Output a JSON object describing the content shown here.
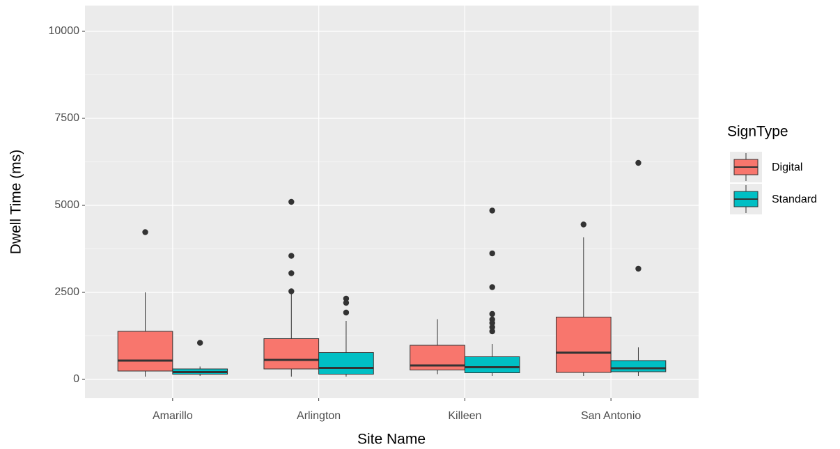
{
  "chart_data": {
    "type": "boxplot",
    "x_label": "Site Name",
    "y_label": "Dwell Time (ms)",
    "legend_title": "SignType",
    "legend_position": "right",
    "categories": [
      "Amarillo",
      "Arlington",
      "Killeen",
      "San Antonio"
    ],
    "series": [
      {
        "name": "Digital",
        "color": "#F8766D",
        "boxes": [
          {
            "min": 80,
            "q1": 240,
            "median": 540,
            "q3": 1380,
            "max": 2500,
            "outliers": [
              4230
            ]
          },
          {
            "min": 80,
            "q1": 300,
            "median": 560,
            "q3": 1170,
            "max": 2450,
            "outliers": [
              2530,
              3050,
              3550,
              5100
            ]
          },
          {
            "min": 150,
            "q1": 270,
            "median": 400,
            "q3": 980,
            "max": 1730,
            "outliers": []
          },
          {
            "min": 100,
            "q1": 200,
            "median": 770,
            "q3": 1790,
            "max": 4080,
            "outliers": [
              4450
            ]
          }
        ]
      },
      {
        "name": "Standard",
        "color": "#00BFC4",
        "boxes": [
          {
            "min": 100,
            "q1": 150,
            "median": 210,
            "q3": 300,
            "max": 370,
            "outliers": [
              1050
            ]
          },
          {
            "min": 80,
            "q1": 150,
            "median": 330,
            "q3": 770,
            "max": 1680,
            "outliers": [
              1920,
              2200,
              2320
            ]
          },
          {
            "min": 100,
            "q1": 190,
            "median": 350,
            "q3": 650,
            "max": 1020,
            "outliers": [
              1380,
              1500,
              1620,
              1720,
              1880,
              2650,
              3620,
              4850
            ]
          },
          {
            "min": 100,
            "q1": 220,
            "median": 320,
            "q3": 540,
            "max": 920,
            "outliers": [
              3180,
              6220
            ]
          }
        ]
      }
    ],
    "ylim": [
      -540,
      10740
    ],
    "yticks": [
      0,
      2500,
      5000,
      7500,
      10000
    ],
    "minor_yticks": [
      1250,
      3750,
      6250,
      8750
    ],
    "grid": true
  }
}
